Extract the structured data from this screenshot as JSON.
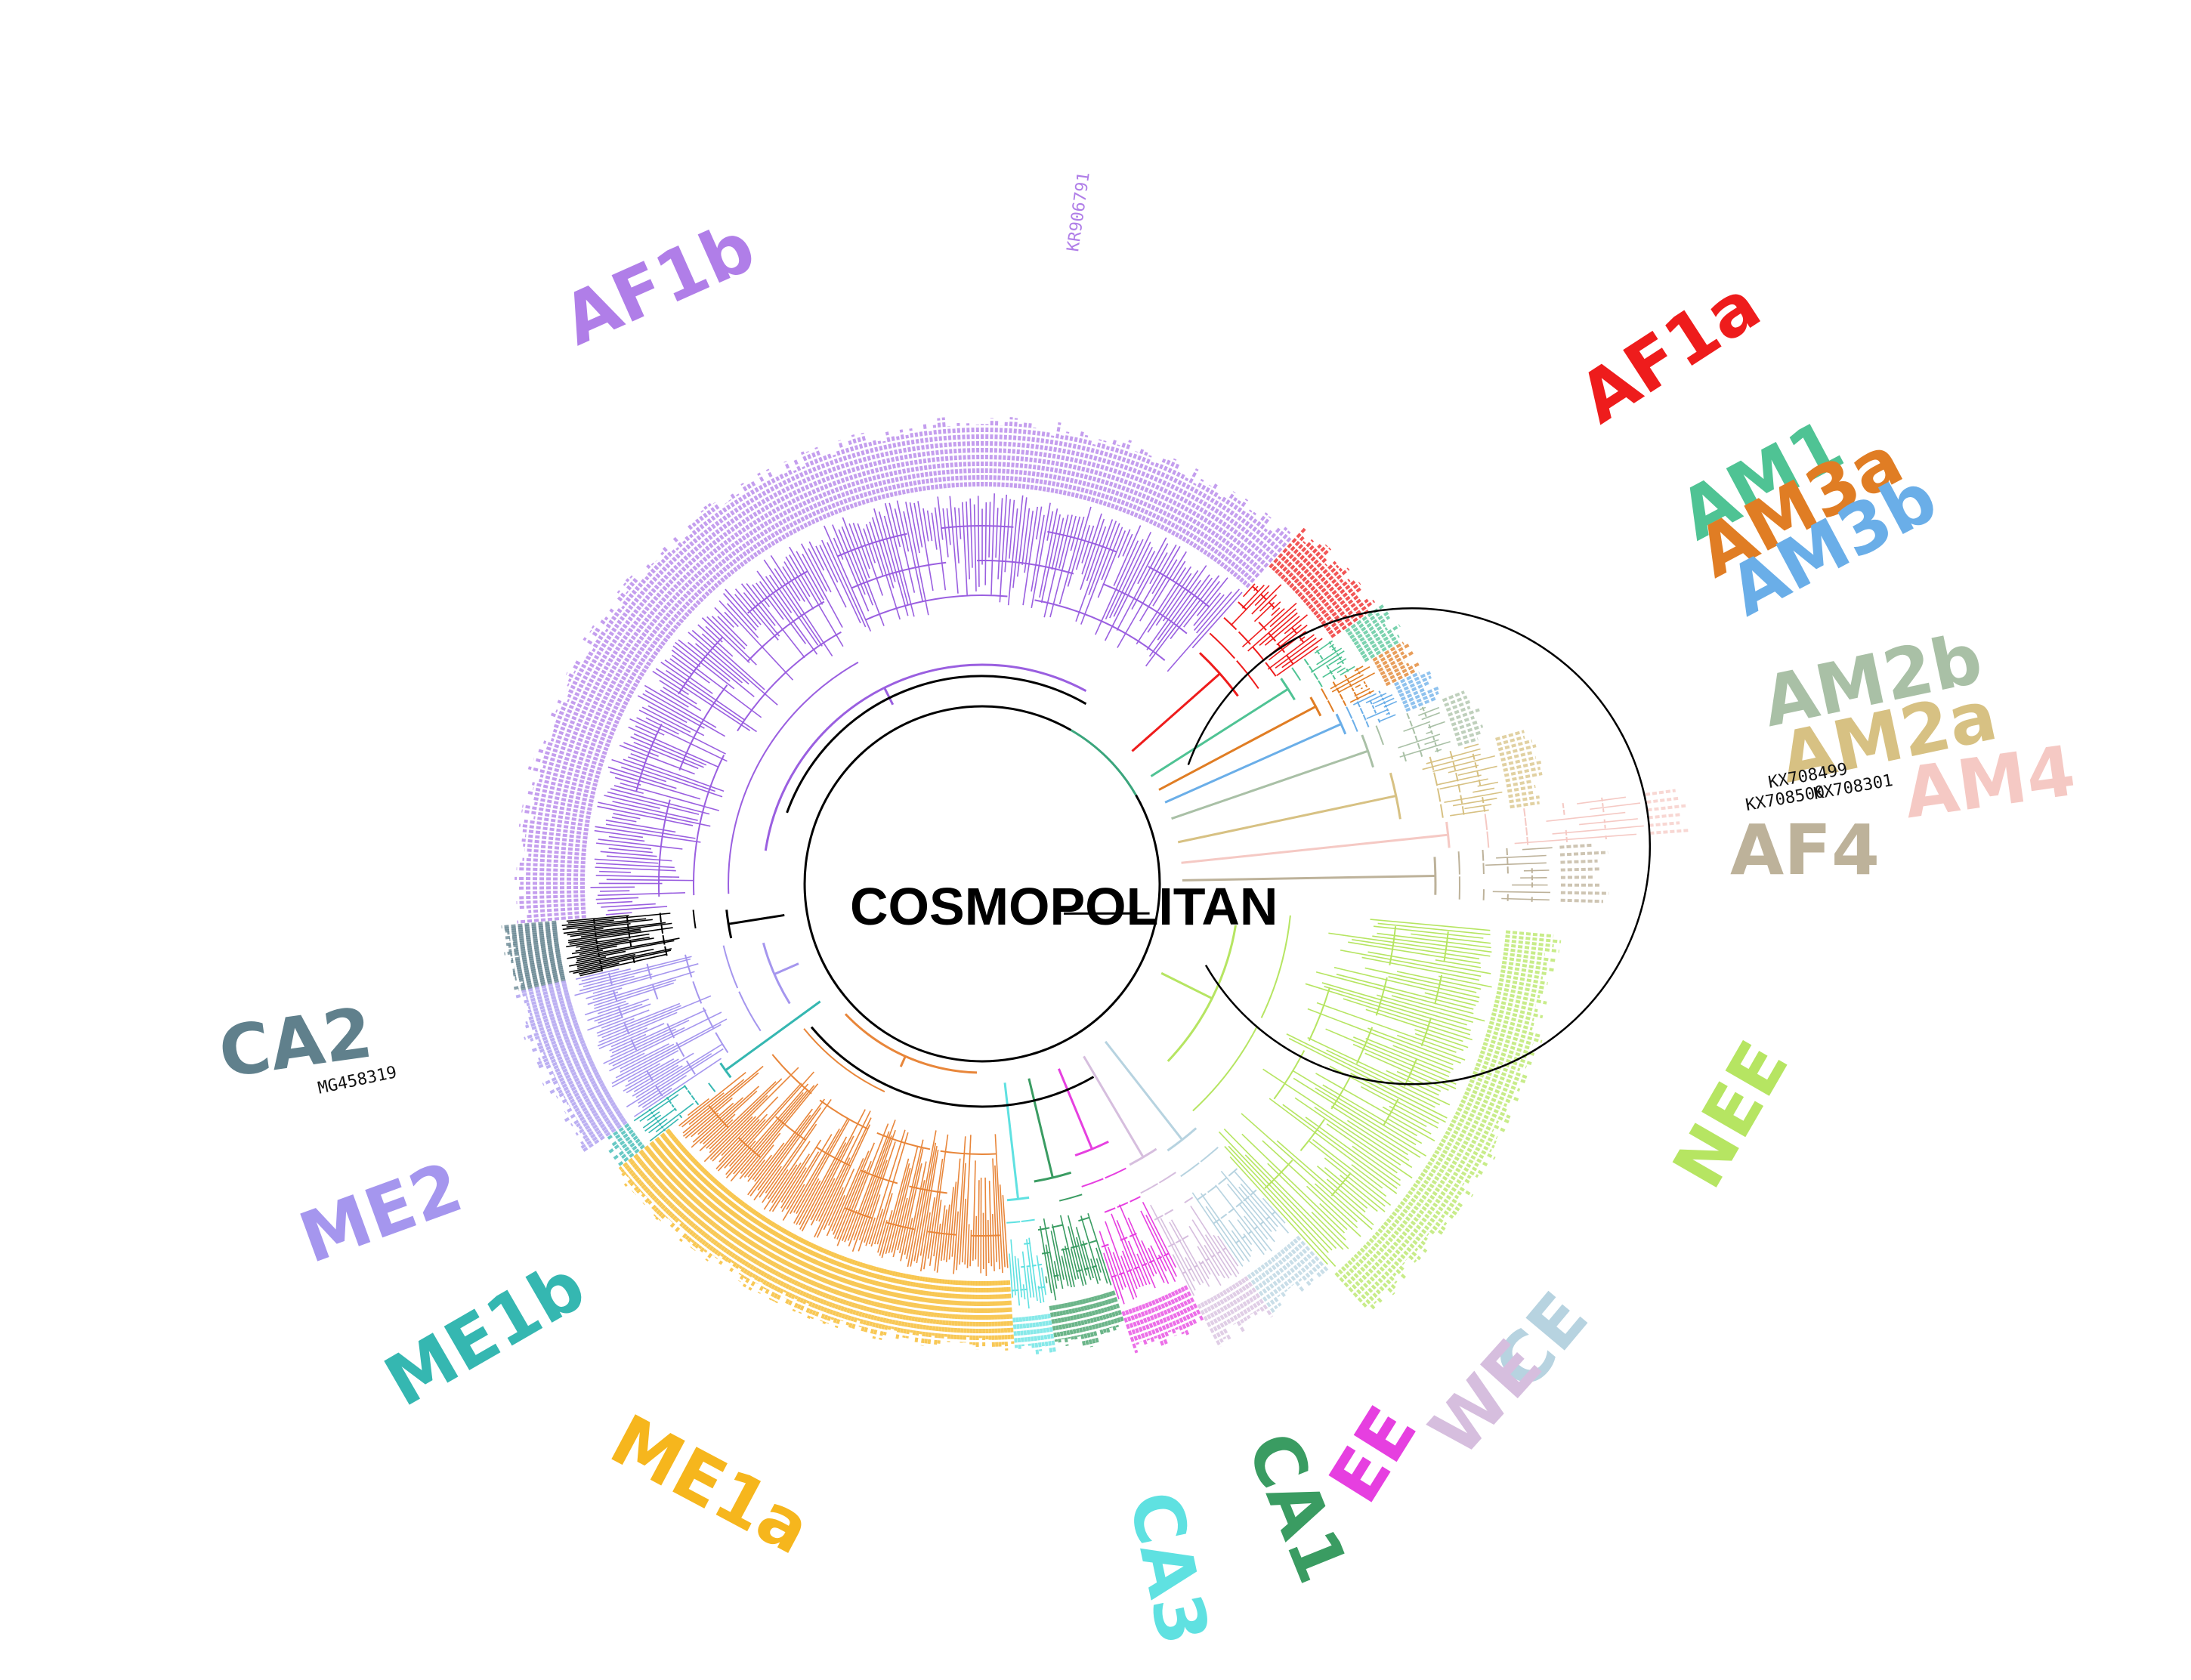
{
  "title": "COSMOPOLITAN",
  "clades": [
    {
      "id": "AF1b",
      "label": "AF1b",
      "color": "#b07ee8"
    },
    {
      "id": "AF1a",
      "label": "AF1a",
      "color": "#ee1c1c"
    },
    {
      "id": "AM1",
      "label": "AM1",
      "color": "#4fc394"
    },
    {
      "id": "AM3a",
      "label": "AM3a",
      "color": "#e07d24"
    },
    {
      "id": "AM3b",
      "label": "AM3b",
      "color": "#6aaee8"
    },
    {
      "id": "AM2b",
      "label": "AM2b",
      "color": "#a9c0a6"
    },
    {
      "id": "AM2a",
      "label": "AM2a",
      "color": "#d7c183"
    },
    {
      "id": "AM4",
      "label": "AM4",
      "color": "#f5c9c4"
    },
    {
      "id": "AF4",
      "label": "AF4",
      "color": "#bdb29a"
    },
    {
      "id": "NEE",
      "label": "NEE",
      "color": "#b6e562"
    },
    {
      "id": "CE",
      "label": "CE",
      "color": "#b7d3e0"
    },
    {
      "id": "WE",
      "label": "WE",
      "color": "#d6bede"
    },
    {
      "id": "EE",
      "label": "EE",
      "color": "#e63fe0"
    },
    {
      "id": "CA1",
      "label": "CA1",
      "color": "#3a9c62"
    },
    {
      "id": "CA3",
      "label": "CA3",
      "color": "#5fe1e1"
    },
    {
      "id": "ME1a",
      "label": "ME1a",
      "color": "#f6b61d"
    },
    {
      "id": "ME1b",
      "label": "ME1b",
      "color": "#35b7b1"
    },
    {
      "id": "ME2",
      "label": "ME2",
      "color": "#a596ee"
    },
    {
      "id": "CA2",
      "label": "CA2",
      "color": "#60808c"
    }
  ],
  "accessions": [
    {
      "id": "MG458319",
      "text": "MG458319"
    },
    {
      "id": "KX708499",
      "text": "KX708499"
    },
    {
      "id": "KX708500",
      "text": "KX708500"
    },
    {
      "id": "KX708301",
      "text": "KX708301"
    },
    {
      "id": "KR906791",
      "text": "KR906791"
    }
  ]
}
